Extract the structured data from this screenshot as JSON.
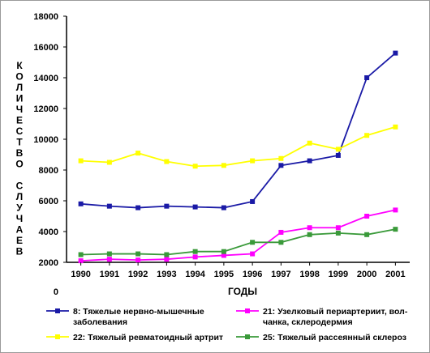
{
  "chart_data": {
    "type": "line",
    "title": "",
    "xlabel": "ГОДЫ",
    "ylabel": "КОЛИЧЕСТВО СЛУЧАЕВ",
    "ylim": [
      0,
      18000
    ],
    "y_ticks": [
      "0",
      "2000",
      "4000",
      "6000",
      "8000",
      "10000",
      "12000",
      "14000",
      "16000",
      "18000"
    ],
    "grid": false,
    "legend_position": "bottom",
    "categories": [
      "1990",
      "1991",
      "1992",
      "1993",
      "1994",
      "1995",
      "1996",
      "1997",
      "1998",
      "1999",
      "2000",
      "2001"
    ],
    "series": [
      {
        "name": "8: Тяжелые нервно-мышечные заболевания",
        "legend_lines": [
          "8: Тяжелые нервно-мышечные",
          "заболевания"
        ],
        "color": "#1a1aa6",
        "marker": "square",
        "values": [
          5800,
          5650,
          5550,
          5650,
          5600,
          5550,
          5950,
          8300,
          8600,
          8950,
          14000,
          15600
        ]
      },
      {
        "name": "21: Узелковый периартериит, волчанка, склеродермия",
        "legend_lines": [
          "21: Узелковый периартериит, вол-",
          "чанка, склеродермия"
        ],
        "color": "#ff00ff",
        "marker": "square",
        "values": [
          2100,
          2200,
          2150,
          2200,
          2350,
          2450,
          2550,
          3950,
          4250,
          4250,
          5000,
          5400
        ]
      },
      {
        "name": "22: Тяжелый ревматоидный артрит",
        "legend_lines": [
          "22: Тяжелый ревматоидный артрит"
        ],
        "color": "#ffff00",
        "marker": "square",
        "values": [
          8600,
          8500,
          9100,
          8550,
          8250,
          8300,
          8600,
          8750,
          9750,
          9350,
          10250,
          10800
        ]
      },
      {
        "name": "25: Тяжелый рассеянный склероз",
        "legend_lines": [
          "25: Тяжелый рассеянный склероз"
        ],
        "color": "#3a9a3a",
        "marker": "square",
        "values": [
          2500,
          2550,
          2550,
          2500,
          2700,
          2700,
          3300,
          3300,
          3800,
          3900,
          3800,
          4150
        ]
      }
    ]
  }
}
